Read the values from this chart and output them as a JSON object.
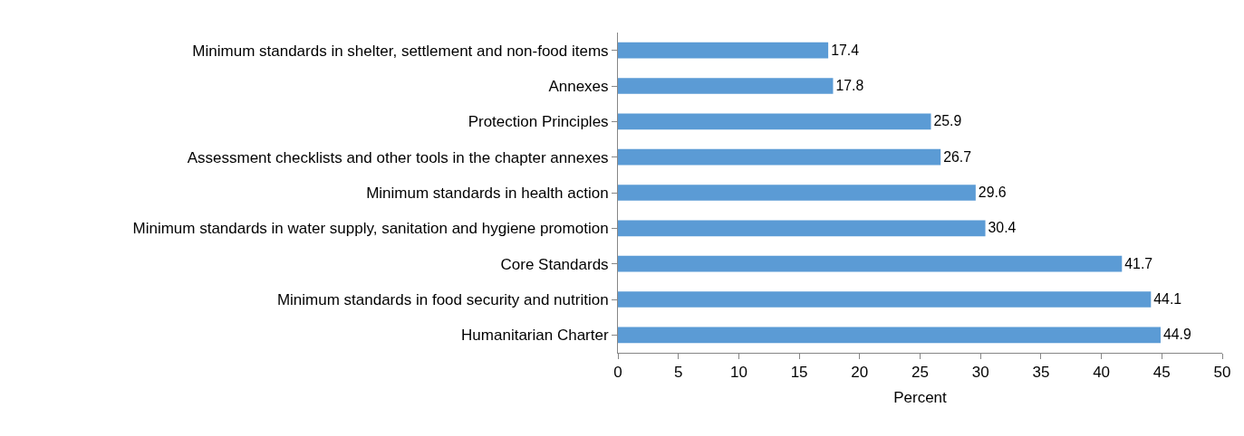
{
  "chart_data": {
    "type": "bar",
    "orientation": "horizontal",
    "xlabel": "Percent",
    "categories": [
      "Minimum standards in shelter, settlement and non-food items",
      "Annexes",
      "Protection Principles",
      "Assessment checklists and other tools in the chapter annexes",
      "Minimum standards in health action",
      "Minimum standards in water supply, sanitation and hygiene promotion",
      "Core Standards",
      "Minimum standards in food security and nutrition",
      "Humanitarian Charter"
    ],
    "values": [
      17.4,
      17.8,
      25.9,
      26.7,
      29.6,
      30.4,
      41.7,
      44.1,
      44.9
    ],
    "color": "#5b9bd5",
    "xlim": [
      0,
      50
    ],
    "xticks": [
      0,
      5,
      10,
      15,
      20,
      25,
      30,
      35,
      40,
      45,
      50
    ],
    "data_labels": true,
    "grid": false
  }
}
